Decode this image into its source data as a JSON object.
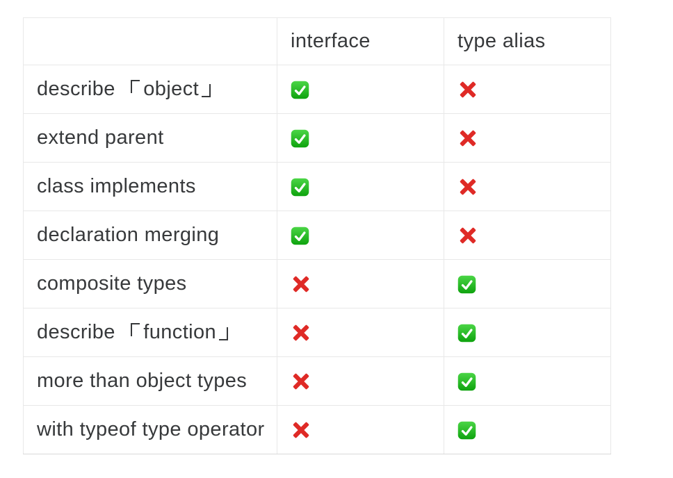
{
  "table": {
    "headers": [
      "",
      "interface",
      "type alias"
    ],
    "rows": [
      {
        "feature": "describe 「object」",
        "interface": "yes",
        "type_alias": "no"
      },
      {
        "feature": "extend parent",
        "interface": "yes",
        "type_alias": "no"
      },
      {
        "feature": "class implements",
        "interface": "yes",
        "type_alias": "no"
      },
      {
        "feature": "declaration merging",
        "interface": "yes",
        "type_alias": "no"
      },
      {
        "feature": "composite types",
        "interface": "no",
        "type_alias": "yes"
      },
      {
        "feature": "describe 「function」",
        "interface": "no",
        "type_alias": "yes"
      },
      {
        "feature": "more than object types",
        "interface": "no",
        "type_alias": "yes"
      },
      {
        "feature": "with typeof type operator",
        "interface": "no",
        "type_alias": "yes"
      }
    ]
  },
  "icons": {
    "yes": "check-mark-button-emoji",
    "no": "cross-mark-emoji"
  },
  "colors": {
    "text": "#37393b",
    "background": "#ffffff",
    "border": "#e8e8e8",
    "border_bottom": "#d9d9d9",
    "check_green_top": "#4bd546",
    "check_green_bottom": "#0ea30e",
    "check_mark_white": "#ffffff",
    "cross_red": "#df2a26"
  },
  "chart_data": {
    "type": "table",
    "columns": [
      "",
      "interface",
      "type alias"
    ],
    "rows": [
      [
        "describe 「object」",
        "✅",
        "❌"
      ],
      [
        "extend parent",
        "✅",
        "❌"
      ],
      [
        "class implements",
        "✅",
        "❌"
      ],
      [
        "declaration merging",
        "✅",
        "❌"
      ],
      [
        "composite types",
        "❌",
        "✅"
      ],
      [
        "describe 「function」",
        "❌",
        "✅"
      ],
      [
        "more than object types",
        "❌",
        "✅"
      ],
      [
        "with typeof type operator",
        "❌",
        "✅"
      ]
    ]
  }
}
